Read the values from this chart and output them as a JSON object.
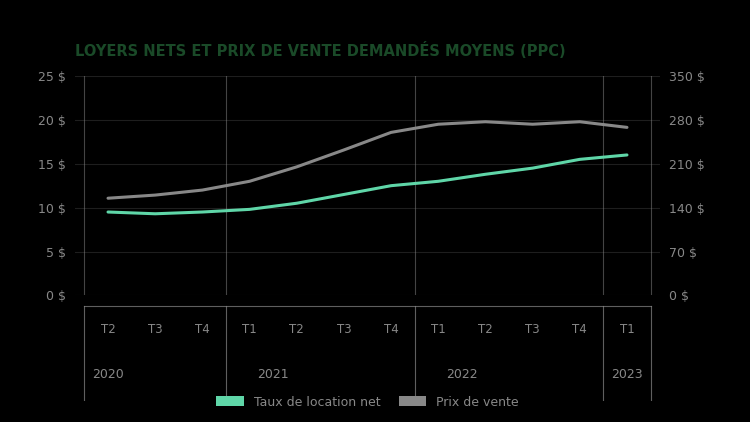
{
  "title": "LOYERS NETS ET PRIX DE VENTE DEMANDÉS MOYENS (PPC)",
  "title_color": "#1a4a28",
  "background_color": "#000000",
  "x_labels": [
    "T2",
    "T3",
    "T4",
    "T1",
    "T2",
    "T3",
    "T4",
    "T1",
    "T2",
    "T3",
    "T4",
    "T1"
  ],
  "year_labels": [
    "2020",
    "2021",
    "2022",
    "2023"
  ],
  "year_centers": [
    1.0,
    4.5,
    8.5,
    12.0
  ],
  "group_boundaries": [
    0.5,
    3.5,
    7.5,
    11.5,
    12.5
  ],
  "rental_data": [
    9.5,
    9.3,
    9.5,
    9.8,
    10.5,
    11.5,
    12.5,
    13.0,
    13.8,
    14.5,
    15.5,
    16.0
  ],
  "sale_data": [
    155,
    160,
    168,
    182,
    205,
    232,
    260,
    273,
    277,
    273,
    277,
    268
  ],
  "rental_color": "#5fd6a8",
  "sale_color": "#888888",
  "left_ylim": [
    0,
    25
  ],
  "right_ylim": [
    0,
    350
  ],
  "left_yticks": [
    0,
    5,
    10,
    15,
    20,
    25
  ],
  "right_yticks": [
    0,
    70,
    140,
    210,
    280,
    350
  ],
  "left_yticklabels": [
    "0 $",
    "5 $",
    "10 $",
    "15 $",
    "20 $",
    "25 $"
  ],
  "right_yticklabels": [
    "0 $",
    "70 $",
    "140 $",
    "210 $",
    "280 $",
    "350 $"
  ],
  "grid_color": "#ffffff",
  "grid_alpha": 0.12,
  "legend_rental": "Taux de location net",
  "legend_sale": "Prix de vente",
  "label_color": "#888888",
  "tick_label_color": "#888888",
  "line_width": 2.2,
  "xlim": [
    0.3,
    12.7
  ]
}
